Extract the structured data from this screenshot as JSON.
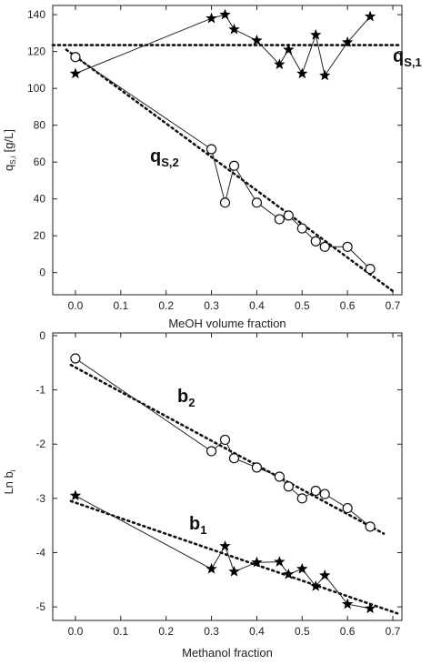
{
  "chart_data": [
    {
      "type": "scatter",
      "xlabel": "MeOH volume fraction",
      "ylabel_main": "q",
      "ylabel_sub": "S,i",
      "ylabel_unit": "[g/L]",
      "xlim": [
        -0.05,
        0.72
      ],
      "ylim": [
        -12,
        145
      ],
      "x_ticks": [
        0.0,
        0.1,
        0.2,
        0.3,
        0.4,
        0.5,
        0.6,
        0.7
      ],
      "y_ticks": [
        0,
        20,
        40,
        60,
        80,
        100,
        120,
        140
      ],
      "grid": false,
      "series": [
        {
          "name_main": "q",
          "name_sub": "S,1",
          "marker": "star",
          "x": [
            0.0,
            0.3,
            0.33,
            0.35,
            0.4,
            0.45,
            0.47,
            0.5,
            0.53,
            0.55,
            0.6,
            0.65
          ],
          "y": [
            108,
            138,
            140,
            132,
            126,
            113,
            121,
            108,
            129,
            107,
            125,
            139
          ],
          "fit": {
            "x1": -0.05,
            "y1": 123.5,
            "x2": 0.72,
            "y2": 123.5
          }
        },
        {
          "name_main": "q",
          "name_sub": "S,2",
          "marker": "circle",
          "x": [
            0.0,
            0.3,
            0.33,
            0.35,
            0.4,
            0.45,
            0.47,
            0.5,
            0.53,
            0.55,
            0.6,
            0.65
          ],
          "y": [
            117,
            67,
            38,
            58,
            38,
            29,
            31,
            24,
            17,
            14,
            14,
            2
          ],
          "fit": {
            "x1": -0.02,
            "y1": 121,
            "x2": 0.7,
            "y2": -10
          }
        }
      ]
    },
    {
      "type": "scatter",
      "xlabel": "Methanol fraction",
      "ylabel_main": "Ln b",
      "ylabel_sub": "i",
      "xlim": [
        -0.05,
        0.72
      ],
      "ylim": [
        -5.25,
        0.05
      ],
      "x_ticks": [
        0.0,
        0.1,
        0.2,
        0.3,
        0.4,
        0.5,
        0.6,
        0.7
      ],
      "y_ticks": [
        0,
        -1,
        -2,
        -3,
        -4,
        -5
      ],
      "grid": false,
      "series": [
        {
          "name_main": "b",
          "name_sub": "2",
          "marker": "circle",
          "x": [
            0.0,
            0.3,
            0.33,
            0.35,
            0.4,
            0.45,
            0.47,
            0.5,
            0.53,
            0.55,
            0.6,
            0.65
          ],
          "y": [
            -0.42,
            -2.13,
            -1.92,
            -2.26,
            -2.43,
            -2.6,
            -2.78,
            -3.0,
            -2.86,
            -2.92,
            -3.18,
            -3.52
          ],
          "fit": {
            "x1": -0.01,
            "y1": -0.54,
            "x2": 0.68,
            "y2": -3.65
          }
        },
        {
          "name_main": "b",
          "name_sub": "1",
          "marker": "star",
          "x": [
            0.0,
            0.3,
            0.33,
            0.35,
            0.4,
            0.45,
            0.47,
            0.5,
            0.53,
            0.55,
            0.6,
            0.65
          ],
          "y": [
            -2.95,
            -4.3,
            -3.88,
            -4.35,
            -4.18,
            -4.17,
            -4.4,
            -4.3,
            -4.62,
            -4.42,
            -4.95,
            -5.03
          ],
          "fit": {
            "x1": -0.01,
            "y1": -3.05,
            "x2": 0.71,
            "y2": -5.12
          }
        }
      ]
    }
  ]
}
